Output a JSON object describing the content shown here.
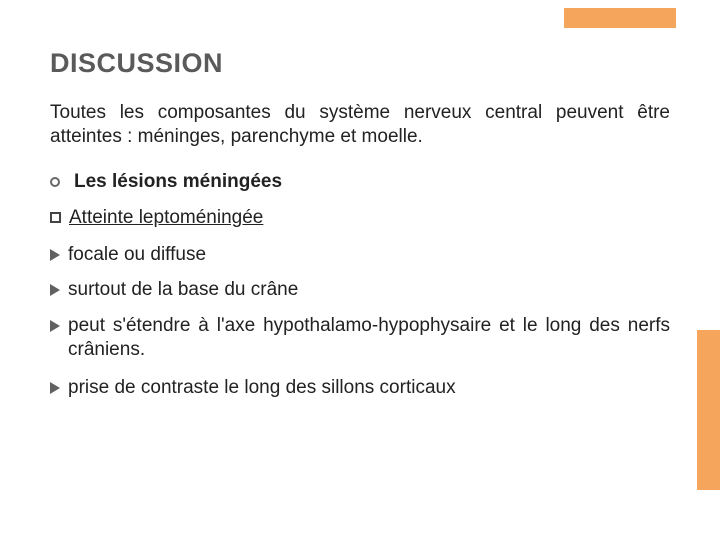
{
  "colors": {
    "accent": "#f5a55c",
    "title": "#5a5a5a",
    "body": "#222222",
    "bullet_ring": "#67686a",
    "triangle": "#616161",
    "background": "#ffffff"
  },
  "title": "DISCUSSION",
  "intro": "Toutes les composantes du système nerveux central peuvent être atteintes : méninges, parenchyme et moelle.",
  "section_heading": "Les lésions méningées",
  "subheading": "Atteinte leptoméningée",
  "items": [
    "focale ou diffuse",
    "surtout de la base du crâne",
    "peut s'étendre à l'axe hypothalamo-hypophysaire et le long des nerfs crâniens.",
    "prise de contraste le long des sillons corticaux"
  ]
}
